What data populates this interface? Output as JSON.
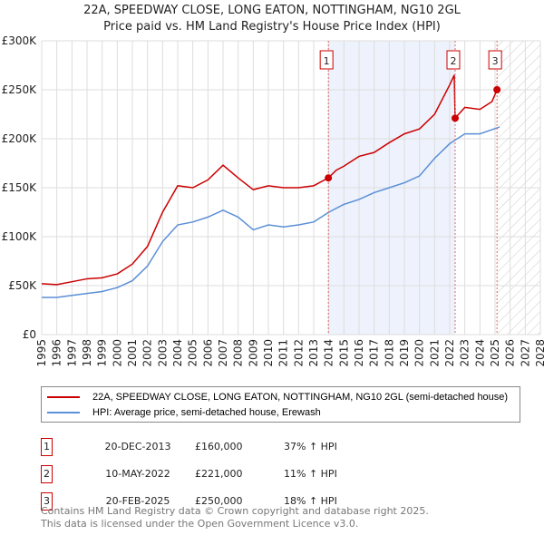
{
  "chart_data": {
    "type": "line",
    "title": "22A, SPEEDWAY CLOSE, LONG EATON, NOTTINGHAM, NG10 2GL",
    "subtitle": "Price paid vs. HM Land Registry's House Price Index (HPI)",
    "xlim": [
      1995,
      2028
    ],
    "ylim": [
      0,
      300000
    ],
    "yticks": [
      0,
      50000,
      100000,
      150000,
      200000,
      250000,
      300000
    ],
    "ytick_labels": [
      "£0",
      "£50K",
      "£100K",
      "£150K",
      "£200K",
      "£250K",
      "£300K"
    ],
    "xticks": [
      "1995",
      "1996",
      "1997",
      "1998",
      "1999",
      "2000",
      "2001",
      "2002",
      "2003",
      "2004",
      "2005",
      "2006",
      "2007",
      "2008",
      "2009",
      "2010",
      "2011",
      "2012",
      "2013",
      "2014",
      "2015",
      "2016",
      "2017",
      "2018",
      "2019",
      "2020",
      "2021",
      "2022",
      "2023",
      "2024",
      "2025",
      "2026",
      "2027",
      "2028"
    ],
    "grid": true,
    "series": [
      {
        "name": "22A, SPEEDWAY CLOSE, LONG EATON, NOTTINGHAM, NG10 2GL (semi-detached house)",
        "color": "#cc0000",
        "x": [
          1995,
          1996,
          1997,
          1998,
          1999,
          2000,
          2001,
          2002,
          2003,
          2004,
          2005,
          2006,
          2007,
          2008,
          2009,
          2010,
          2011,
          2012,
          2013,
          2013.97,
          2014.5,
          2015,
          2016,
          2017,
          2018,
          2019,
          2020,
          2021,
          2022.0,
          2022.3,
          2022.36,
          2023,
          2024,
          2024.8,
          2025.13
        ],
        "y": [
          52000,
          51000,
          54000,
          57000,
          58000,
          62000,
          72000,
          90000,
          125000,
          152000,
          150000,
          158000,
          173000,
          160000,
          148000,
          152000,
          150000,
          150000,
          152000,
          160000,
          168000,
          172000,
          182000,
          186000,
          196000,
          205000,
          210000,
          225000,
          255000,
          265000,
          221000,
          232000,
          230000,
          238000,
          250000
        ]
      },
      {
        "name": "HPI: Average price, semi-detached house, Erewash",
        "color": "#5b8fd6",
        "x": [
          1995,
          1996,
          1997,
          1998,
          1999,
          2000,
          2001,
          2002,
          2003,
          2004,
          2005,
          2006,
          2007,
          2008,
          2009,
          2010,
          2011,
          2012,
          2013,
          2014,
          2015,
          2016,
          2017,
          2018,
          2019,
          2020,
          2021,
          2022,
          2023,
          2024,
          2025.3
        ],
        "y": [
          38000,
          38000,
          40000,
          42000,
          44000,
          48000,
          55000,
          70000,
          95000,
          112000,
          115000,
          120000,
          127000,
          120000,
          107000,
          112000,
          110000,
          112000,
          115000,
          125000,
          133000,
          138000,
          145000,
          150000,
          155000,
          162000,
          180000,
          195000,
          205000,
          205000,
          212000
        ]
      }
    ],
    "sales": [
      {
        "num": "1",
        "x": 2013.97,
        "y": 160000,
        "date": "20-DEC-2013",
        "price": "£160,000",
        "hpi": "37% ↑ HPI"
      },
      {
        "num": "2",
        "x": 2022.36,
        "y": 221000,
        "date": "10-MAY-2022",
        "price": "£221,000",
        "hpi": "11% ↑ HPI"
      },
      {
        "num": "3",
        "x": 2025.13,
        "y": 250000,
        "date": "20-FEB-2025",
        "price": "£250,000",
        "hpi": "18% ↑ HPI"
      }
    ],
    "legend_position": "bottom"
  },
  "footer": {
    "line1": "Contains HM Land Registry data © Crown copyright and database right 2025.",
    "line2": "This data is licensed under the Open Government Licence v3.0."
  }
}
